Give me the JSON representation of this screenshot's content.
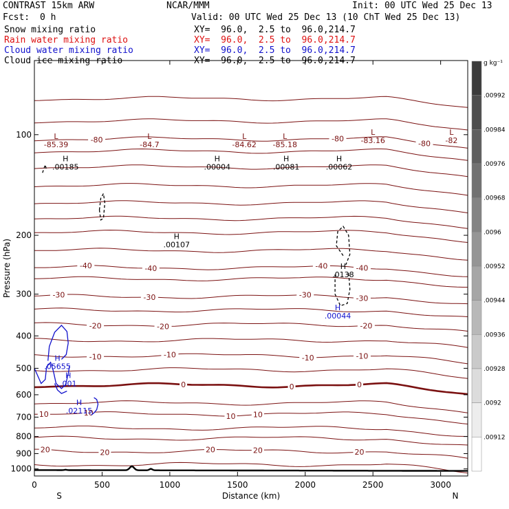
{
  "header": {
    "model": "CONTRAST 15km ARW",
    "center": "NCAR/MMM",
    "init": "Init: 00 UTC Wed 25 Dec 13",
    "fcst_label": "Fcst:",
    "fcst_value": "0 h",
    "valid": "Valid: 00 UTC Wed 25 Dec 13 (10 ChT Wed 25 Dec 13)",
    "fields": [
      {
        "name": "Snow mixing ratio",
        "xy": "XY=  96.0,  2.5 to  96.0,214.7",
        "color": "#000000"
      },
      {
        "name": "Rain water mixing ratio",
        "xy": "XY=  96.0,  2.5 to  96.0,214.7",
        "color": "#dd1111"
      },
      {
        "name": "Cloud water mixing ratio",
        "xy": "XY=  96.0,  2.5 to  96.0,214.7",
        "color": "#1111cc"
      },
      {
        "name": "Cloud ice mixing ratio",
        "xy": "XY=  96.0,  2.5 to  96.0,214.7",
        "color": "#000000"
      }
    ]
  },
  "chart_data": {
    "type": "contour cross-section",
    "xlabel": "Distance (km)",
    "ylabel": "Pressure (hPa)",
    "xlim": [
      0,
      3200
    ],
    "ylim": [
      1050,
      60
    ],
    "x_ticks": [
      0,
      500,
      1000,
      1500,
      2000,
      2500,
      3000
    ],
    "y_ticks": [
      100,
      200,
      300,
      400,
      500,
      600,
      700,
      800,
      900,
      1000
    ],
    "y_log": true,
    "x_end_labels": {
      "left": "S",
      "right": "N"
    },
    "colorbar": {
      "unit": "g kg⁻¹",
      "ticks": [
        ".00992",
        ".00984",
        ".00976",
        ".00968",
        ".0096",
        ".00952",
        ".00944",
        ".00936",
        ".00928",
        ".0092",
        ".00912"
      ]
    },
    "temperature_isotherms": [
      {
        "value": -80,
        "labels": [
          {
            "text": "-80",
            "x": 460
          },
          {
            "text": "-80",
            "x": 2240
          },
          {
            "text": "-80",
            "x": 2880
          }
        ]
      },
      {
        "value": -40,
        "labels": [
          {
            "text": "-40",
            "x": 380
          },
          {
            "text": "-40",
            "x": 860
          },
          {
            "text": "-40",
            "x": 2120
          },
          {
            "text": "-40",
            "x": 2420
          }
        ]
      },
      {
        "value": -30,
        "labels": [
          {
            "text": "-30",
            "x": 180
          },
          {
            "text": "-30",
            "x": 850
          },
          {
            "text": "-30",
            "x": 2000
          },
          {
            "text": "-30",
            "x": 2420
          }
        ]
      },
      {
        "value": -20,
        "labels": [
          {
            "text": "-20",
            "x": 450
          },
          {
            "text": "-20",
            "x": 950
          },
          {
            "text": "-20",
            "x": 2450
          }
        ]
      },
      {
        "value": -10,
        "labels": [
          {
            "text": "-10",
            "x": 450
          },
          {
            "text": "-10",
            "x": 1000
          },
          {
            "text": "-10",
            "x": 2020
          },
          {
            "text": "-10",
            "x": 2420
          }
        ]
      },
      {
        "value": 0,
        "labels": [
          {
            "text": "0",
            "x": 1100
          },
          {
            "text": "0",
            "x": 1900
          },
          {
            "text": "0",
            "x": 2400
          }
        ]
      },
      {
        "value": 10,
        "labels": [
          {
            "text": "10",
            "x": 70
          },
          {
            "text": "10",
            "x": 400
          },
          {
            "text": "10",
            "x": 1450
          },
          {
            "text": "10",
            "x": 1650
          }
        ]
      },
      {
        "value": 20,
        "labels": [
          {
            "text": "20",
            "x": 80
          },
          {
            "text": "20",
            "x": 520
          },
          {
            "text": "20",
            "x": 1300
          },
          {
            "text": "20",
            "x": 1650
          },
          {
            "text": "20",
            "x": 2400
          }
        ]
      }
    ],
    "extrema": [
      {
        "type": "L",
        "value": "-85.39",
        "x": 160,
        "p": 103,
        "color": "#7a1010"
      },
      {
        "type": "L",
        "value": "-84.7",
        "x": 850,
        "p": 103,
        "color": "#7a1010"
      },
      {
        "type": "L",
        "value": "-84.62",
        "x": 1550,
        "p": 103,
        "color": "#7a1010"
      },
      {
        "type": "L",
        "value": "-85.18",
        "x": 1850,
        "p": 103,
        "color": "#7a1010"
      },
      {
        "type": "L",
        "value": "-83.16",
        "x": 2500,
        "p": 100,
        "color": "#7a1010"
      },
      {
        "type": "L",
        "value": "-82",
        "x": 3080,
        "p": 100,
        "color": "#7a1010"
      },
      {
        "type": "H",
        "value": ".00185",
        "x": 230,
        "p": 120,
        "color": "#000000"
      },
      {
        "type": "H",
        "value": ".00004",
        "x": 1350,
        "p": 120,
        "color": "#000000"
      },
      {
        "type": "H",
        "value": ".00081",
        "x": 1860,
        "p": 120,
        "color": "#000000"
      },
      {
        "type": "H",
        "value": ".00062",
        "x": 2250,
        "p": 120,
        "color": "#000000"
      },
      {
        "type": "H",
        "value": ".00107",
        "x": 1050,
        "p": 205,
        "color": "#000000"
      },
      {
        "type": "H",
        "value": ".0138",
        "x": 2280,
        "p": 252,
        "color": "#000000"
      },
      {
        "type": "H",
        "value": ".00044",
        "x": 2240,
        "p": 335,
        "color": "#1111cc"
      },
      {
        "type": "H",
        "value": ".05655",
        "x": 170,
        "p": 475,
        "color": "#1111cc"
      },
      {
        "type": "H",
        "value": ".001",
        "x": 250,
        "p": 535,
        "color": "#1111cc"
      },
      {
        "type": "H",
        "value": ".02115",
        "x": 330,
        "p": 645,
        "color": "#1111cc"
      }
    ]
  }
}
